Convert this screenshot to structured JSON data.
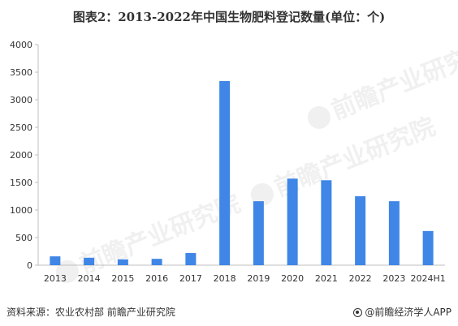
{
  "chart_data": {
    "type": "bar",
    "title": "图表2：2013-2022年中国生物肥料登记数量(单位：个)",
    "categories": [
      "2013",
      "2014",
      "2015",
      "2016",
      "2017",
      "2018",
      "2019",
      "2020",
      "2021",
      "2022",
      "2023",
      "2024H1"
    ],
    "values": [
      160,
      135,
      105,
      115,
      220,
      3340,
      1160,
      1570,
      1540,
      1250,
      1160,
      620
    ],
    "ylim": [
      0,
      4000
    ],
    "yticks": [
      0,
      500,
      1000,
      1500,
      2000,
      2500,
      3000,
      3500,
      4000
    ],
    "bar_color": "#3f86e6",
    "grid": false,
    "legend": "none"
  },
  "footer": {
    "source": "资料来源：农业农村部 前瞻产业研究院",
    "brand": "@前瞻经济学人APP"
  },
  "watermark": {
    "text": "前瞻产业研究院"
  }
}
